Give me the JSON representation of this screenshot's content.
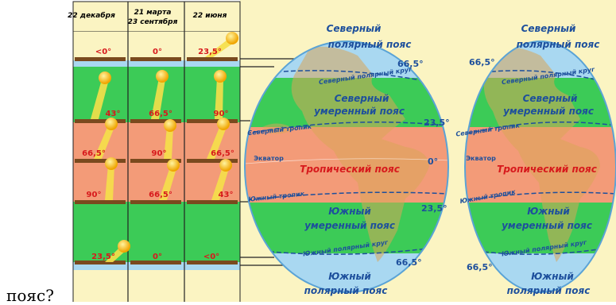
{
  "caption": "пояс?",
  "columns": {
    "dec": "22 декабря",
    "mar_line1": "21 марта",
    "mar_line2": "23 сентября",
    "jun": "22 июня"
  },
  "angles": {
    "top": [
      "<0°",
      "0°",
      "23,5°"
    ],
    "r1": [
      "43°",
      "66,5°",
      "90°"
    ],
    "r2": [
      "66,5°",
      "90°",
      "66,5°"
    ],
    "r3": [
      "90°",
      "66,5°",
      "43°"
    ],
    "bottom": [
      "23,5°",
      "0°",
      "<0°"
    ]
  },
  "globe1": {
    "north_belt_1": "Северный",
    "north_belt_2": "полярный пояс",
    "arctic_circle": "Северный полярный круг",
    "north_temperate_1": "Северный",
    "north_temperate_2": "умеренный пояс",
    "tropic_north": "Северный тропик",
    "equator": "Экватор",
    "tropical": "Тропический пояс",
    "tropic_south": "Южный тропик",
    "south_temperate_1": "Южный",
    "south_temperate_2": "умеренный пояс",
    "antarctic_circle": "Южный полярный круг",
    "south_belt_1": "Южный",
    "south_belt_2": "полярный пояс"
  },
  "globe2": {
    "north_belt_1": "Северный",
    "north_belt_2": "полярный пояс",
    "arctic_circle": "Северный полярный круг",
    "north_temperate_1": "Северный",
    "north_temperate_2": "умеренный пояс",
    "tropic_north": "Северный тропик",
    "equator": "Экватор",
    "tropical": "Тропический пояс",
    "tropic_south": "Южный тропик",
    "south_temperate_1": "Южный",
    "south_temperate_2": "умеренный пояс",
    "antarctic_circle": "Южный полярный круг",
    "south_belt_1": "Южный",
    "south_belt_2": "полярный пояс"
  },
  "latitudes": {
    "n66": "66,5°",
    "n23": "23,5°",
    "eq": "0°",
    "s23": "23,5°",
    "s66": "66,5°"
  },
  "colors": {
    "background": "#fbf4c2",
    "polar": "#a9d8f1",
    "temperate": "#3ccb57",
    "tropical": "#f39b78",
    "label_blue": "#1d4f9c",
    "label_red": "#d7191c",
    "sun": "#f6c21a",
    "ground": "#7a4a1e"
  }
}
